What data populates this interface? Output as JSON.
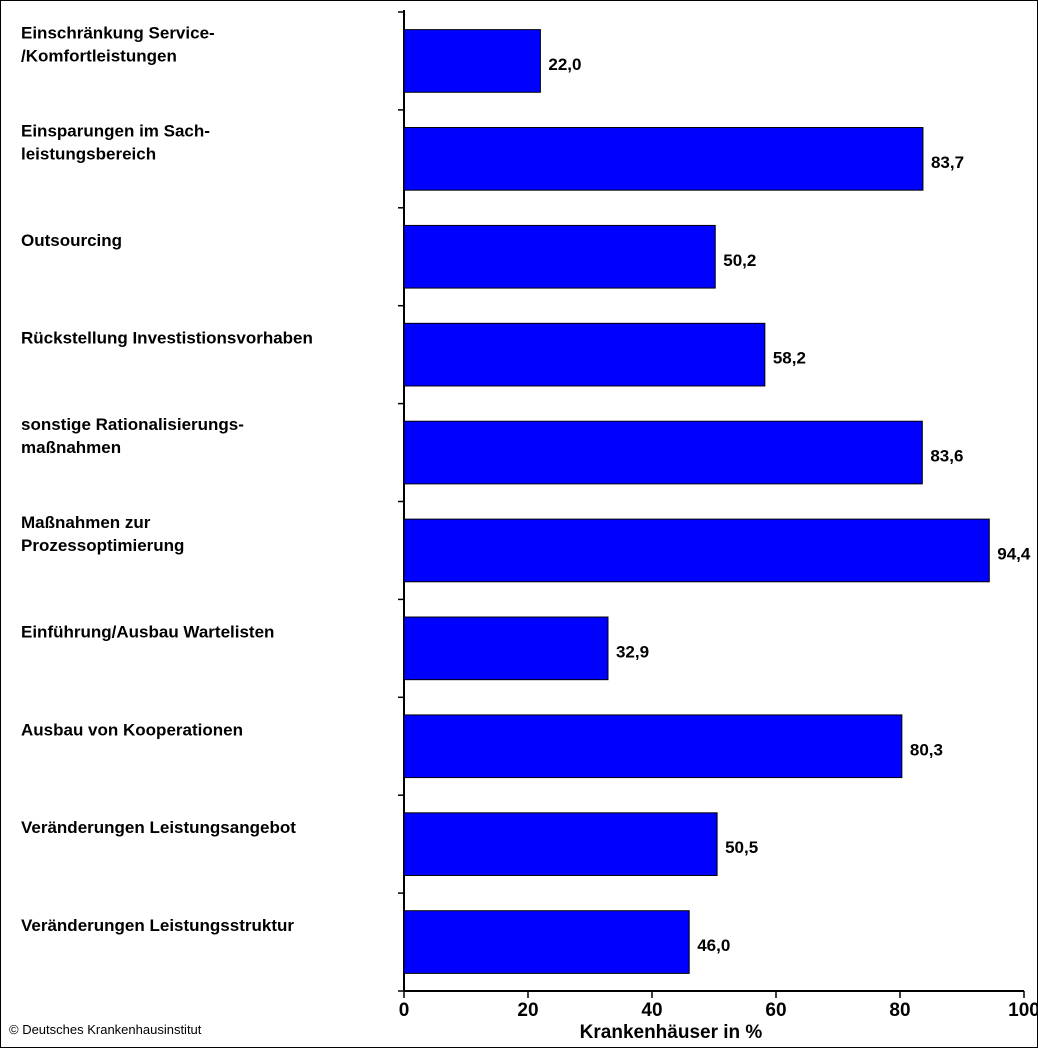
{
  "chart_data": {
    "type": "bar",
    "orientation": "horizontal",
    "categories": [
      [
        "Einschränkung Service-",
        "/Komfortleistungen"
      ],
      [
        "Einsparungen im Sach-",
        "leistungsbereich"
      ],
      [
        "Outsourcing"
      ],
      [
        "Rückstellung Investistionsvorhaben"
      ],
      [
        "sonstige Rationalisierungs-",
        "maßnahmen"
      ],
      [
        "Maßnahmen zur",
        "Prozessoptimierung"
      ],
      [
        "Einführung/Ausbau Wartelisten"
      ],
      [
        "Ausbau von Kooperationen"
      ],
      [
        "Veränderungen Leistungsangebot"
      ],
      [
        "Veränderungen Leistungsstruktur"
      ]
    ],
    "values": [
      22.0,
      83.7,
      50.2,
      58.2,
      83.6,
      94.4,
      32.9,
      80.3,
      50.5,
      46.0
    ],
    "value_labels": [
      "22,0",
      "83,7",
      "50,2",
      "58,2",
      "83,6",
      "94,4",
      "32,9",
      "80,3",
      "50,5",
      "46,0"
    ],
    "xlabel": "Krankenhäuser in %",
    "xlim": [
      0,
      100
    ],
    "xticks": [
      0,
      20,
      40,
      60,
      80,
      100
    ],
    "xtick_labels": [
      "0",
      "20",
      "40",
      "60",
      "80",
      "100"
    ],
    "bar_color": "#0000FF",
    "grid": false
  },
  "credit": "© Deutsches Krankenhausinstitut"
}
